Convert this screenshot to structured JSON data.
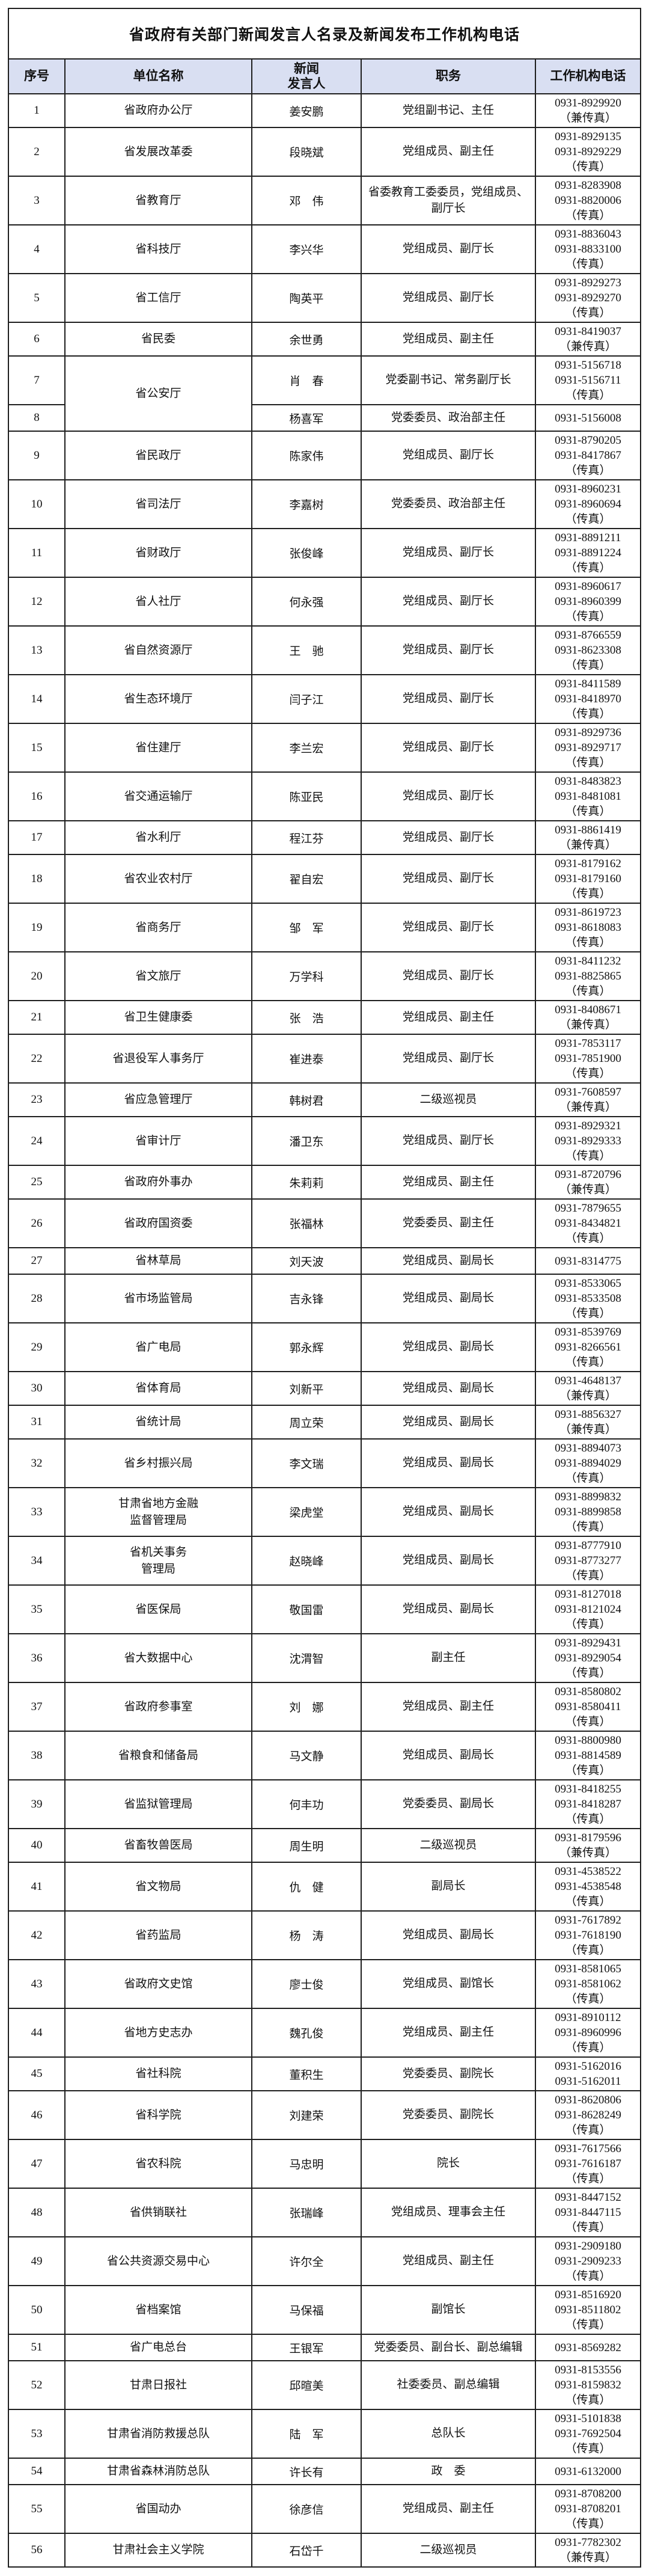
{
  "title": "省政府有关部门新闻发言人名录及新闻发布工作机构电话",
  "colors": {
    "header_bg": "#d9dff2",
    "border": "#1f1f1f",
    "text": "#111111"
  },
  "table": {
    "headers": [
      "序号",
      "单位名称",
      "新闻\n发言人",
      "职务",
      "工作机构电话"
    ],
    "rows": [
      {
        "no": "1",
        "unit": "省政府办公厅",
        "speaker": "姜安鹏",
        "position": "党组副书记、主任",
        "phone": "0931-8929920\n（兼传真）"
      },
      {
        "no": "2",
        "unit": "省发展改革委",
        "speaker": "段晓斌",
        "position": "党组成员、副主任",
        "phone": "0931-8929135\n0931-8929229\n（传真）"
      },
      {
        "no": "3",
        "unit": "省教育厅",
        "speaker": "邓　伟",
        "position": "省委教育工委委员，党组成员、副厅长",
        "phone": "0931-8283908\n0931-8820006\n（传真）"
      },
      {
        "no": "4",
        "unit": "省科技厅",
        "speaker": "李兴华",
        "position": "党组成员、副厅长",
        "phone": "0931-8836043\n0931-8833100\n（传真）"
      },
      {
        "no": "5",
        "unit": "省工信厅",
        "speaker": "陶英平",
        "position": "党组成员、副厅长",
        "phone": "0931-8929273\n0931-8929270\n（传真）"
      },
      {
        "no": "6",
        "unit": "省民委",
        "speaker": "余世勇",
        "position": "党组成员、副主任",
        "phone": "0931-8419037\n（兼传真）"
      },
      {
        "no": "7",
        "unit": "省公安厅",
        "unit_rowspan": 2,
        "speaker": "肖　春",
        "position": "党委副书记、常务副厅长",
        "phone": "0931-5156718\n0931-5156711\n（传真）"
      },
      {
        "no": "8",
        "unit": null,
        "speaker": "杨喜军",
        "position": "党委委员、政治部主任",
        "phone": "0931-5156008"
      },
      {
        "no": "9",
        "unit": "省民政厅",
        "speaker": "陈家伟",
        "position": "党组成员、副厅长",
        "phone": "0931-8790205\n0931-8417867\n（传真）"
      },
      {
        "no": "10",
        "unit": "省司法厅",
        "speaker": "李嘉树",
        "position": "党委委员、政治部主任",
        "phone": "0931-8960231\n0931-8960694\n（传真）"
      },
      {
        "no": "11",
        "unit": "省财政厅",
        "speaker": "张俊峰",
        "position": "党组成员、副厅长",
        "phone": "0931-8891211\n0931-8891224\n（传真）"
      },
      {
        "no": "12",
        "unit": "省人社厅",
        "speaker": "何永强",
        "position": "党组成员、副厅长",
        "phone": "0931-8960617\n0931-8960399\n（传真）"
      },
      {
        "no": "13",
        "unit": "省自然资源厅",
        "speaker": "王　驰",
        "position": "党组成员、副厅长",
        "phone": "0931-8766559\n0931-8623308\n（传真）"
      },
      {
        "no": "14",
        "unit": "省生态环境厅",
        "speaker": "闫子江",
        "position": "党组成员、副厅长",
        "phone": "0931-8411589\n0931-8418970\n（传真）"
      },
      {
        "no": "15",
        "unit": "省住建厅",
        "speaker": "李兰宏",
        "position": "党组成员、副厅长",
        "phone": "0931-8929736\n0931-8929717\n（传真）"
      },
      {
        "no": "16",
        "unit": "省交通运输厅",
        "speaker": "陈亚民",
        "position": "党组成员、副厅长",
        "phone": "0931-8483823\n0931-8481081\n（传真）"
      },
      {
        "no": "17",
        "unit": "省水利厅",
        "speaker": "程江芬",
        "position": "党组成员、副厅长",
        "phone": "0931-8861419\n（兼传真）"
      },
      {
        "no": "18",
        "unit": "省农业农村厅",
        "speaker": "翟自宏",
        "position": "党组成员、副厅长",
        "phone": "0931-8179162\n0931-8179160\n（传真）"
      },
      {
        "no": "19",
        "unit": "省商务厅",
        "speaker": "邹　军",
        "position": "党组成员、副厅长",
        "phone": "0931-8619723\n0931-8618083\n（传真）"
      },
      {
        "no": "20",
        "unit": "省文旅厅",
        "speaker": "万学科",
        "position": "党组成员、副厅长",
        "phone": "0931-8411232\n0931-8825865\n（传真）"
      },
      {
        "no": "21",
        "unit": "省卫生健康委",
        "speaker": "张　浩",
        "position": "党组成员、副主任",
        "phone": "0931-8408671\n（兼传真）"
      },
      {
        "no": "22",
        "unit": "省退役军人事务厅",
        "speaker": "崔进泰",
        "position": "党组成员、副厅长",
        "phone": "0931-7853117\n0931-7851900\n（传真）"
      },
      {
        "no": "23",
        "unit": "省应急管理厅",
        "speaker": "韩树君",
        "position": "二级巡视员",
        "phone": "0931-7608597\n（兼传真）"
      },
      {
        "no": "24",
        "unit": "省审计厅",
        "speaker": "潘卫东",
        "position": "党组成员、副厅长",
        "phone": "0931-8929321\n0931-8929333\n（传真）"
      },
      {
        "no": "25",
        "unit": "省政府外事办",
        "speaker": "朱莉莉",
        "position": "党组成员、副主任",
        "phone": "0931-8720796\n（兼传真）"
      },
      {
        "no": "26",
        "unit": "省政府国资委",
        "speaker": "张福林",
        "position": "党委委员、副主任",
        "phone": "0931-7879655\n0931-8434821\n（传真）"
      },
      {
        "no": "27",
        "unit": "省林草局",
        "speaker": "刘天波",
        "position": "党组成员、副局长",
        "phone": "0931-8314775"
      },
      {
        "no": "28",
        "unit": "省市场监管局",
        "speaker": "吉永锋",
        "position": "党组成员、副局长",
        "phone": "0931-8533065\n0931-8533508\n（传真）"
      },
      {
        "no": "29",
        "unit": "省广电局",
        "speaker": "郭永辉",
        "position": "党组成员、副局长",
        "phone": "0931-8539769\n0931-8266561\n（传真）"
      },
      {
        "no": "30",
        "unit": "省体育局",
        "speaker": "刘新平",
        "position": "党组成员、副局长",
        "phone": "0931-4648137\n（兼传真）"
      },
      {
        "no": "31",
        "unit": "省统计局",
        "speaker": "周立荣",
        "position": "党组成员、副局长",
        "phone": "0931-8856327\n（兼传真）"
      },
      {
        "no": "32",
        "unit": "省乡村振兴局",
        "speaker": "李文瑞",
        "position": "党组成员、副局长",
        "phone": "0931-8894073\n0931-8894029\n（传真）"
      },
      {
        "no": "33",
        "unit": "甘肃省地方金融\n监督管理局",
        "speaker": "梁虎堂",
        "position": "党组成员、副局长",
        "phone": "0931-8899832\n0931-8899858\n（传真）"
      },
      {
        "no": "34",
        "unit": "省机关事务\n管理局",
        "speaker": "赵晓峰",
        "position": "党组成员、副局长",
        "phone": "0931-8777910\n0931-8773277\n（传真）"
      },
      {
        "no": "35",
        "unit": "省医保局",
        "speaker": "敬国雷",
        "position": "党组成员、副局长",
        "phone": "0931-8127018\n0931-8121024\n（传真）"
      },
      {
        "no": "36",
        "unit": "省大数据中心",
        "speaker": "沈渭智",
        "position": "副主任",
        "phone": "0931-8929431\n0931-8929054\n（传真）"
      },
      {
        "no": "37",
        "unit": "省政府参事室",
        "speaker": "刘　娜",
        "position": "党组成员、副主任",
        "phone": "0931-8580802\n0931-8580411\n（传真）"
      },
      {
        "no": "38",
        "unit": "省粮食和储备局",
        "speaker": "马文静",
        "position": "党组成员、副局长",
        "phone": "0931-8800980\n0931-8814589\n（传真）"
      },
      {
        "no": "39",
        "unit": "省监狱管理局",
        "speaker": "何丰功",
        "position": "党委委员、副局长",
        "phone": "0931-8418255\n0931-8418287\n（传真）"
      },
      {
        "no": "40",
        "unit": "省畜牧兽医局",
        "speaker": "周生明",
        "position": "二级巡视员",
        "phone": "0931-8179596\n（兼传真）"
      },
      {
        "no": "41",
        "unit": "省文物局",
        "speaker": "仇　健",
        "position": "副局长",
        "phone": "0931-4538522\n0931-4538548\n（传真）"
      },
      {
        "no": "42",
        "unit": "省药监局",
        "speaker": "杨　涛",
        "position": "党组成员、副局长",
        "phone": "0931-7617892\n0931-7618190\n（传真）"
      },
      {
        "no": "43",
        "unit": "省政府文史馆",
        "speaker": "廖士俊",
        "position": "党组成员、副馆长",
        "phone": "0931-8581065\n0931-8581062\n（传真）"
      },
      {
        "no": "44",
        "unit": "省地方史志办",
        "speaker": "魏孔俊",
        "position": "党组成员、副主任",
        "phone": "0931-8910112\n0931-8960996\n（传真）"
      },
      {
        "no": "45",
        "unit": "省社科院",
        "speaker": "董积生",
        "position": "党委委员、副院长",
        "phone": "0931-5162016\n0931-5162011"
      },
      {
        "no": "46",
        "unit": "省科学院",
        "speaker": "刘建荣",
        "position": "党委委员、副院长",
        "phone": "0931-8620806\n0931-8628249\n（传真）"
      },
      {
        "no": "47",
        "unit": "省农科院",
        "speaker": "马忠明",
        "position": "院长",
        "phone": "0931-7617566\n0931-7616187\n（传真）"
      },
      {
        "no": "48",
        "unit": "省供销联社",
        "speaker": "张瑞峰",
        "position": "党组成员、理事会主任",
        "phone": "0931-8447152\n0931-8447115\n（传真）"
      },
      {
        "no": "49",
        "unit": "省公共资源交易中心",
        "speaker": "许尔全",
        "position": "党组成员、副主任",
        "phone": "0931-2909180\n0931-2909233\n（传真）"
      },
      {
        "no": "50",
        "unit": "省档案馆",
        "speaker": "马保福",
        "position": "副馆长",
        "phone": "0931-8516920\n0931-8511802\n（传真）"
      },
      {
        "no": "51",
        "unit": "省广电总台",
        "speaker": "王银军",
        "position": "党委委员、副台长、副总编辑",
        "phone": "0931-8569282"
      },
      {
        "no": "52",
        "unit": "甘肃日报社",
        "speaker": "邱暄美",
        "position": "社委委员、副总编辑",
        "phone": "0931-8153556\n0931-8159832\n（传真）"
      },
      {
        "no": "53",
        "unit": "甘肃省消防救援总队",
        "speaker": "陆　军",
        "position": "总队长",
        "phone": "0931-5101838\n0931-7692504\n（传真）"
      },
      {
        "no": "54",
        "unit": "甘肃省森林消防总队",
        "speaker": "许长有",
        "position": "政　委",
        "phone": "0931-6132000"
      },
      {
        "no": "55",
        "unit": "省国动办",
        "speaker": "徐彦信",
        "position": "党组成员、副主任",
        "phone": "0931-8708200\n0931-8708201\n（传真）"
      },
      {
        "no": "56",
        "unit": "甘肃社会主义学院",
        "speaker": "石岱千",
        "position": "二级巡视员",
        "phone": "0931-7782302\n（兼传真）"
      }
    ]
  }
}
